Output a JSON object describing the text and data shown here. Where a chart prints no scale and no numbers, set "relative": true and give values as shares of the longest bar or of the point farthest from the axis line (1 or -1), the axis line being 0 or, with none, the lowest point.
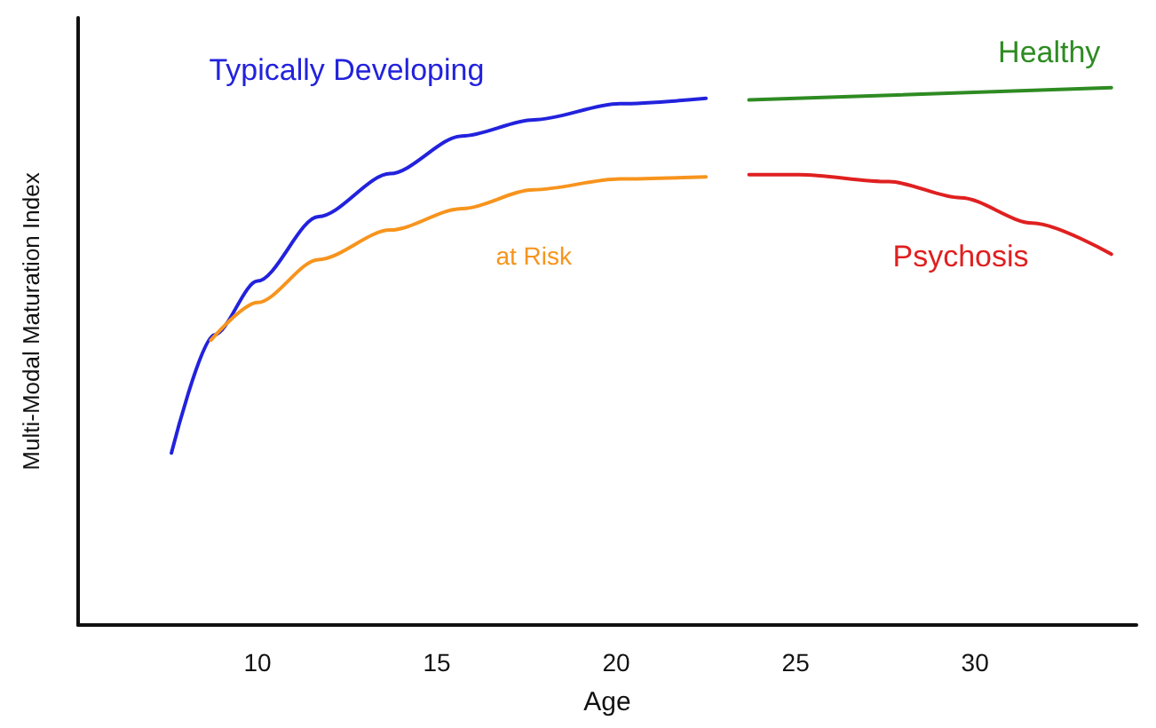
{
  "chart_data": {
    "type": "line",
    "relative": true,
    "xlabel": "Age",
    "ylabel": "Multi-Modal Maturation Index",
    "xlim": [
      5,
      34.5
    ],
    "xticks": [
      10,
      15,
      20,
      25,
      30
    ],
    "grid": false,
    "legend": false,
    "marker": "none",
    "line_style": "solid",
    "series": [
      {
        "name": "Typically Developing",
        "color": "#2222dd",
        "x": [
          7.6,
          8.8,
          10,
          11.7,
          13.7,
          15.7,
          17.7,
          20.1,
          22.5
        ],
        "values": [
          0.32,
          0.54,
          0.64,
          0.76,
          0.84,
          0.91,
          0.94,
          0.97,
          0.98
        ]
      },
      {
        "name": "at Risk",
        "color": "#f7941d",
        "x": [
          8.7,
          10,
          11.7,
          13.7,
          15.7,
          17.7,
          20.1,
          22.5
        ],
        "values": [
          0.53,
          0.6,
          0.68,
          0.735,
          0.775,
          0.81,
          0.83,
          0.834
        ]
      },
      {
        "name": "Healthy",
        "color": "#2e8b22",
        "x": [
          23.7,
          33.8
        ],
        "values": [
          0.977,
          1
        ]
      },
      {
        "name": "Psychosis",
        "color": "#e02020",
        "x": [
          23.7,
          25.1,
          27.6,
          29.6,
          31.6,
          33.8
        ],
        "values": [
          0.838,
          0.838,
          0.825,
          0.795,
          0.748,
          0.69
        ]
      }
    ]
  }
}
